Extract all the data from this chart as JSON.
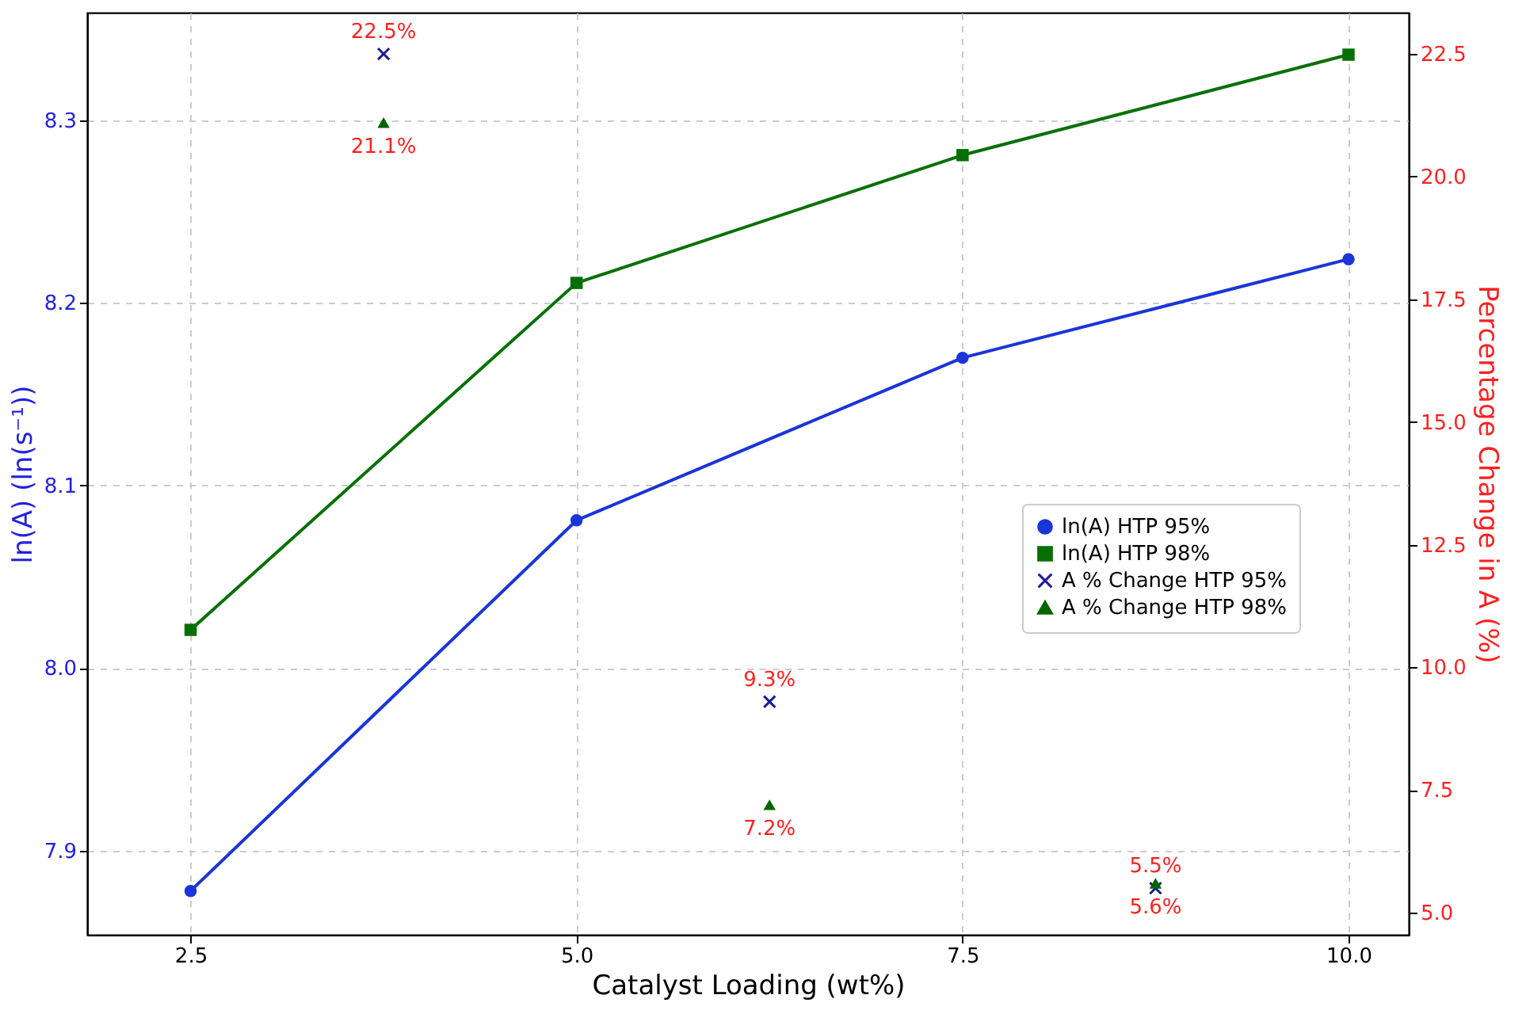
{
  "chart_data": {
    "type": "line",
    "xlabel": "Catalyst Loading (wt%)",
    "ylabel": "ln(A) (ln(s⁻¹))",
    "y2label": "Percentage Change in A (%)",
    "xlim": [
      1.83,
      10.39
    ],
    "xticks": [
      2.5,
      {
        "value": 5,
        "label": "5.0"
      },
      7.5,
      {
        "value": 10,
        "label": "10.0"
      }
    ],
    "ylim": [
      7.854,
      8.359
    ],
    "yticks": [
      7.9,
      {
        "value": 8,
        "label": "8.0"
      },
      8.1,
      8.2,
      8.3
    ],
    "y2lim": [
      4.55,
      23.34
    ],
    "y2ticks": [
      {
        "value": 5,
        "label": "5.0"
      },
      7.5,
      {
        "value": 10,
        "label": "10.0"
      },
      12.5,
      {
        "value": 15,
        "label": "15.0"
      },
      17.5,
      {
        "value": 20,
        "label": "20.0"
      },
      22.5
    ],
    "grid": true,
    "legend": "right",
    "line_style": "solid",
    "series": [
      {
        "name": "ln(A) HTP 95%",
        "type": "line",
        "marker": "circle",
        "color": "#1a35d8",
        "x": [
          2.5,
          5,
          7.5,
          10
        ],
        "values": [
          7.878,
          8.081,
          8.17,
          8.224
        ]
      },
      {
        "name": "ln(A) HTP 98%",
        "type": "line",
        "marker": "square",
        "color": "#067006",
        "x": [
          2.5,
          5,
          7.5,
          10
        ],
        "values": [
          8.021,
          8.211,
          8.281,
          8.336
        ]
      },
      {
        "name": "A % Change HTP 95%",
        "type": "scatter",
        "axis": "y2",
        "marker": "cross",
        "color": "#1c1c96",
        "x": [
          3.75,
          6.25,
          8.75
        ],
        "values": [
          22.5,
          9.3,
          5.5
        ],
        "value_labels": [
          "22.5%",
          "9.3%",
          "5.5%"
        ]
      },
      {
        "name": "A % Change HTP 98%",
        "type": "scatter",
        "axis": "y2",
        "marker": "triangle",
        "color": "#006400",
        "x": [
          3.75,
          6.25,
          8.75
        ],
        "values": [
          21.1,
          7.2,
          5.6
        ],
        "value_labels": [
          "21.1%",
          "7.2%",
          "5.6%"
        ]
      }
    ]
  }
}
